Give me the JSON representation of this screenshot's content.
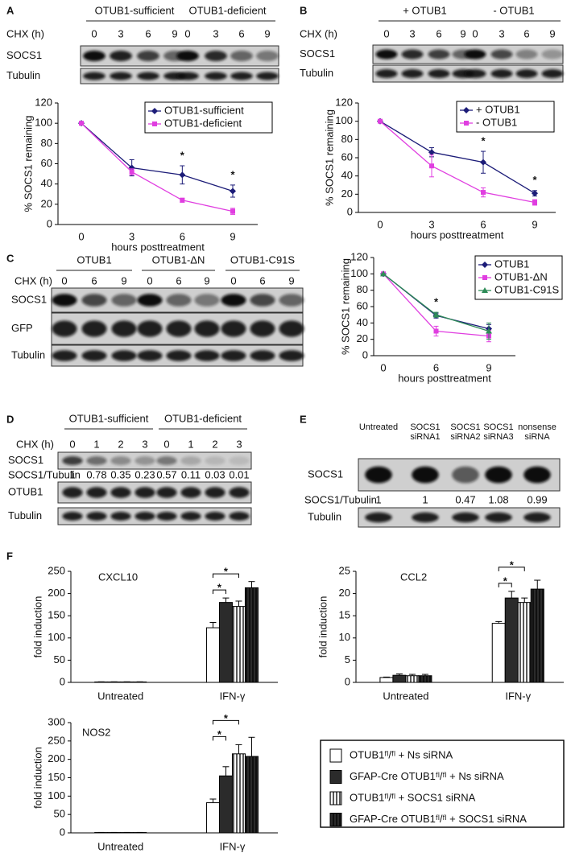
{
  "panel_labels": [
    "A",
    "B",
    "C",
    "D",
    "E",
    "F"
  ],
  "blots": [
    {
      "groups": [
        "OTUB1-sufficient",
        "OTUB1-deficient"
      ],
      "lane_header": "CHX (h)",
      "lanes": [
        "0",
        "3",
        "6",
        "9",
        "0",
        "3",
        "6",
        "9"
      ],
      "rows": [
        "SOCS1",
        "Tubulin"
      ]
    },
    {
      "groups": [
        "+ OTUB1",
        "- OTUB1"
      ],
      "lane_header": "CHX (h)",
      "lanes": [
        "0",
        "3",
        "6",
        "9",
        "0",
        "3",
        "6",
        "9"
      ],
      "rows": [
        "SOCS1",
        "Tubulin"
      ]
    },
    {
      "groups": [
        "OTUB1",
        "OTUB1-ΔN",
        "OTUB1-C91S"
      ],
      "lane_header": "CHX (h)",
      "lanes": [
        "0",
        "6",
        "9",
        "0",
        "6",
        "9",
        "0",
        "6",
        "9"
      ],
      "rows": [
        "SOCS1",
        "GFP",
        "Tubulin"
      ]
    },
    {
      "groups": [
        "OTUB1-sufficient",
        "OTUB1-deficient"
      ],
      "lane_header": "CHX (h)",
      "lanes": [
        "0",
        "1",
        "2",
        "3",
        "0",
        "1",
        "2",
        "3"
      ],
      "rows": [
        "SOCS1",
        "OTUB1",
        "Tubulin"
      ],
      "ratio_label": "SOCS1/Tubulin",
      "ratios": [
        1,
        0.78,
        0.35,
        0.23,
        0.57,
        0.11,
        0.03,
        0.01
      ]
    },
    {
      "lanes": [
        "Untreated",
        "SOCS1 siRNA1",
        "SOCS1 siRNA2",
        "SOCS1 siRNA3",
        "nonsense siRNA"
      ],
      "rows": [
        "SOCS1",
        "Tubulin"
      ],
      "ratio_label": "SOCS1/Tubulin",
      "ratios": [
        1,
        1,
        0.47,
        1.08,
        0.99
      ]
    }
  ],
  "chart_data": [
    {
      "type": "line",
      "xlabel": "hours posttreatment",
      "ylabel": "% SOCS1 remaining",
      "categories": [
        "0",
        "3",
        "6",
        "9"
      ],
      "ylim": [
        0,
        120
      ],
      "yticks": [
        0,
        20,
        40,
        60,
        80,
        100,
        120
      ],
      "legend": "upper right",
      "series": [
        {
          "name": "OTUB1-sufficient",
          "color": "#1c1c78",
          "marker": "diamond",
          "values": [
            100,
            56,
            49,
            33
          ],
          "errors": [
            0,
            8,
            9,
            6
          ]
        },
        {
          "name": "OTUB1-deficient",
          "color": "#e03ee0",
          "marker": "square",
          "values": [
            100,
            52,
            24,
            13
          ],
          "errors": [
            0,
            3,
            2,
            3
          ]
        }
      ],
      "annotations": [
        {
          "text": "*",
          "category": "6"
        },
        {
          "text": "*",
          "category": "9"
        }
      ]
    },
    {
      "type": "line",
      "xlabel": "hours posttreatment",
      "ylabel": "% SOCS1 remaining",
      "categories": [
        "0",
        "3",
        "6",
        "9"
      ],
      "ylim": [
        0,
        120
      ],
      "yticks": [
        0,
        20,
        40,
        60,
        80,
        100,
        120
      ],
      "legend": "upper right",
      "series": [
        {
          "name": "+ OTUB1",
          "color": "#1c1c78",
          "marker": "diamond",
          "values": [
            100,
            66,
            55,
            21
          ],
          "errors": [
            0,
            5,
            12,
            3
          ]
        },
        {
          "name": "- OTUB1",
          "color": "#e03ee0",
          "marker": "square",
          "values": [
            100,
            51,
            22,
            11
          ],
          "errors": [
            0,
            12,
            5,
            3
          ]
        }
      ],
      "annotations": [
        {
          "text": "*",
          "category": "6"
        },
        {
          "text": "*",
          "category": "9"
        }
      ]
    },
    {
      "type": "line",
      "xlabel": "hours posttreatment",
      "ylabel": "% SOCS1 remaining",
      "categories": [
        "0",
        "6",
        "9"
      ],
      "ylim": [
        0,
        120
      ],
      "yticks": [
        0,
        20,
        40,
        60,
        80,
        100,
        120
      ],
      "legend": "upper right",
      "series": [
        {
          "name": "OTUB1",
          "color": "#1c1c78",
          "marker": "diamond",
          "values": [
            100,
            49,
            33
          ],
          "errors": [
            0,
            3,
            5
          ]
        },
        {
          "name": "OTUB1-ΔN",
          "color": "#e03ee0",
          "marker": "square",
          "values": [
            100,
            30,
            24
          ],
          "errors": [
            0,
            6,
            7
          ]
        },
        {
          "name": "OTUB1-C91S",
          "color": "#2e8b57",
          "marker": "triangle",
          "values": [
            100,
            50,
            30
          ],
          "errors": [
            0,
            3,
            10
          ]
        }
      ],
      "annotations": [
        {
          "text": "*",
          "category": "6"
        }
      ]
    },
    {
      "type": "bar",
      "ylabel": "fold induction",
      "categories": [
        "Untreated",
        "IFN-γ"
      ],
      "series": [
        {
          "name": "OTUB1ᶠˡ/ᶠˡ + Ns siRNA",
          "color": "#ffffff",
          "hatch": false
        },
        {
          "name": "GFAP-Cre OTUB1ᶠˡ/ᶠˡ + Ns siRNA",
          "color": "#2b2b2b",
          "hatch": false
        },
        {
          "name": "OTUB1ᶠˡ/ᶠˡ + SOCS1 siRNA",
          "color": "#ffffff",
          "hatch": true
        },
        {
          "name": "GFAP-Cre OTUB1ᶠˡ/ᶠˡ + SOCS1 siRNA",
          "color": "#2b2b2b",
          "hatch": true
        }
      ],
      "panels": [
        {
          "title": "CXCL10",
          "ylim": [
            0,
            250
          ],
          "yticks": [
            0,
            50,
            100,
            150,
            200,
            250
          ],
          "values": [
            [
              1,
              123
            ],
            [
              1,
              180
            ],
            [
              1,
              171
            ],
            [
              1,
              213
            ]
          ],
          "errors": [
            [
              0.3,
              12
            ],
            [
              0.3,
              10
            ],
            [
              0.3,
              12
            ],
            [
              0.3,
              14
            ]
          ],
          "annotations": [
            "*",
            "*"
          ]
        },
        {
          "title": "CCL2",
          "ylim": [
            0,
            25
          ],
          "yticks": [
            0,
            5,
            10,
            15,
            20,
            25
          ],
          "values": [
            [
              1.1,
              13.3
            ],
            [
              1.6,
              19
            ],
            [
              1.5,
              18
            ],
            [
              1.5,
              21
            ]
          ],
          "errors": [
            [
              0.1,
              0.4
            ],
            [
              0.3,
              1.5
            ],
            [
              0.3,
              1
            ],
            [
              0.3,
              2
            ]
          ],
          "annotations": [
            "*",
            "*"
          ]
        },
        {
          "title": "NOS2",
          "ylim": [
            0,
            300
          ],
          "yticks": [
            0,
            50,
            100,
            150,
            200,
            250,
            300
          ],
          "values": [
            [
              1,
              82
            ],
            [
              1,
              155
            ],
            [
              1,
              215
            ],
            [
              1,
              208
            ]
          ],
          "errors": [
            [
              0.3,
              10
            ],
            [
              0.3,
              25
            ],
            [
              0.3,
              25
            ],
            [
              0.3,
              52
            ]
          ],
          "annotations": [
            "*",
            "*"
          ]
        }
      ]
    }
  ]
}
